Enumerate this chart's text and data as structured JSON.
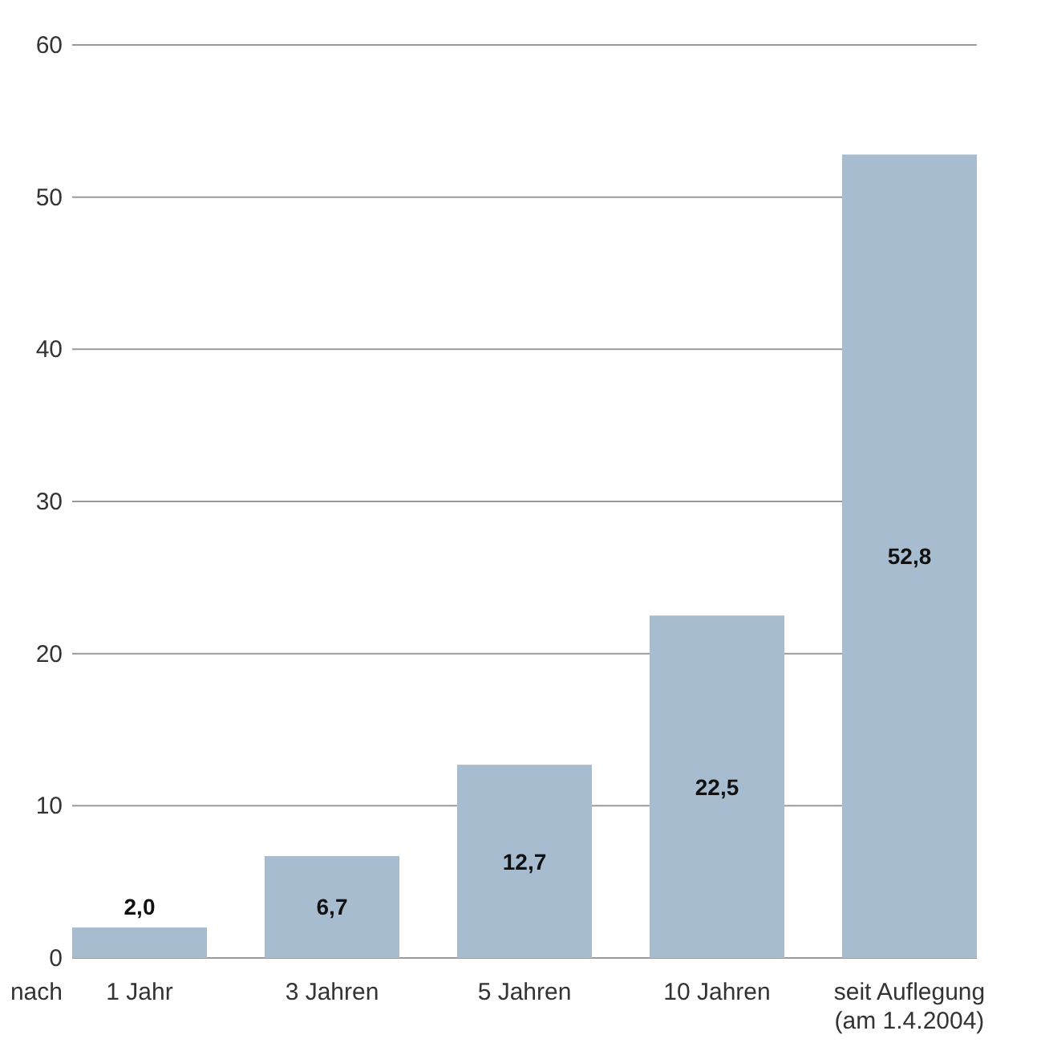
{
  "chart_data": {
    "type": "bar",
    "xlabel": "nach",
    "categories": [
      "1 Jahr",
      "3 Jahren",
      "5 Jahren",
      "10 Jahren",
      "seit Auflegung\n(am 1.4.2004)"
    ],
    "values": [
      2.0,
      6.7,
      12.7,
      22.5,
      52.8
    ],
    "value_labels": [
      "2,0",
      "6,7",
      "12,7",
      "22,5",
      "52,8"
    ],
    "color": "#a7bccf",
    "ylim": [
      0,
      60
    ],
    "yticks": [
      0,
      10,
      20,
      30,
      40,
      50,
      60
    ],
    "grid": "y"
  }
}
